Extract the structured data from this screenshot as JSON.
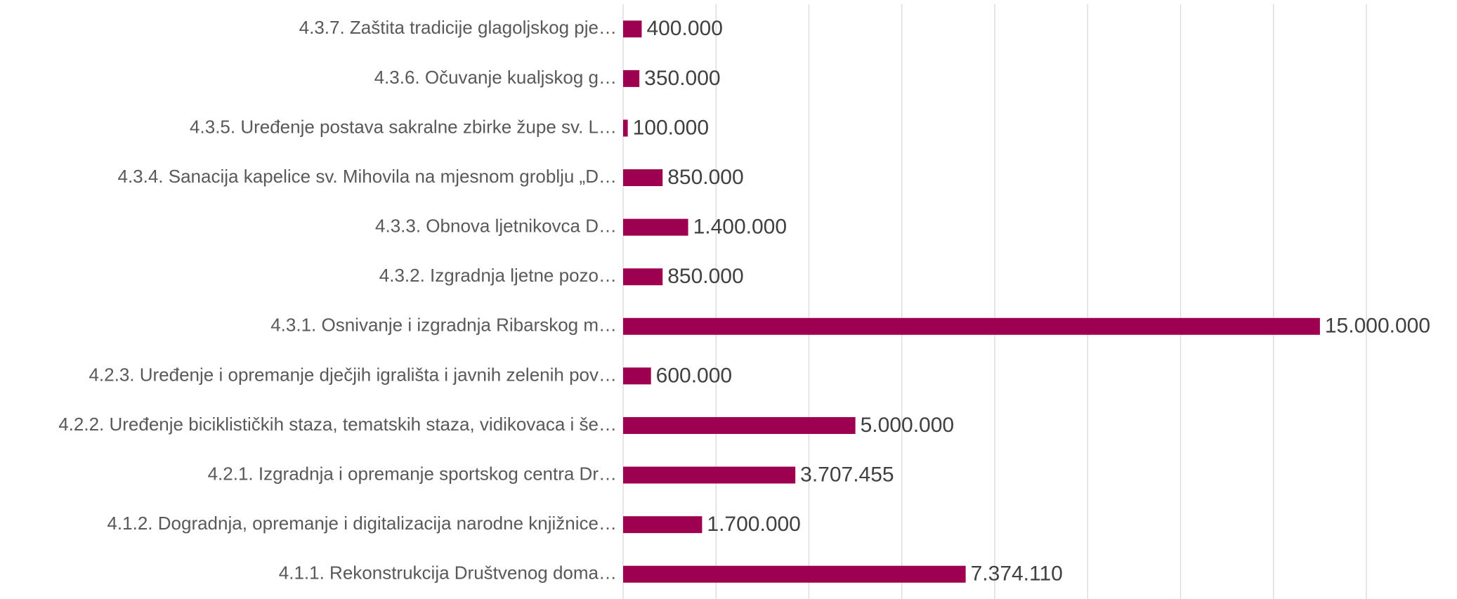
{
  "chart_data": {
    "type": "barh",
    "color": "#9e004f",
    "grid": true,
    "categories": [
      "4.3.7. Zaštita tradicije glagoljskog pje…",
      "4.3.6. Očuvanje kualjskog g…",
      "4.3.5. Uređenje postava sakralne zbirke župe sv. L…",
      "4.3.4. Sanacija kapelice sv. Mihovila na mjesnom groblju „D…",
      "4.3.3. Obnova ljetnikovca D…",
      "4.3.2. Izgradnja ljetne pozo…",
      "4.3.1. Osnivanje i izgradnja Ribarskog m…",
      "4.2.3. Uređenje i opremanje dječjih igrališta i javnih zelenih pov…",
      "4.2.2. Uređenje biciklističkih staza, tematskih staza, vidikovaca i še…",
      "4.2.1. Izgradnja i opremanje sportskog centra Dr…",
      "4.1.2. Dogradnja, opremanje i digitalizacija narodne knjižnice…",
      "4.1.1. Rekonstrukcija Društvenog doma…"
    ],
    "values": [
      400000,
      350000,
      100000,
      850000,
      1400000,
      850000,
      15000000,
      600000,
      5000000,
      3707455,
      1700000,
      7374110
    ],
    "value_labels": [
      "400.000",
      "350.000",
      "100.000",
      "850.000",
      "1.400.000",
      "850.000",
      "15.000.000",
      "600.000",
      "5.000.000",
      "3.707.455",
      "1.700.000",
      "7.374.110"
    ],
    "xlim": [
      0,
      16000000
    ],
    "xticks": [
      0,
      2000000,
      4000000,
      6000000,
      8000000,
      10000000,
      12000000,
      14000000,
      16000000
    ]
  }
}
